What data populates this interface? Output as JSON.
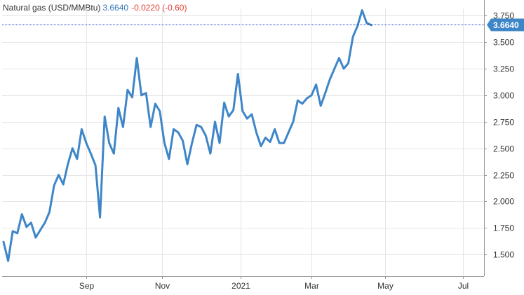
{
  "header": {
    "title": "Natural gas (USD/MMBtu)",
    "last": "3.6640",
    "change": "-0.0220 (-0.60)"
  },
  "colors": {
    "line": "#3f86c8",
    "badge": "#3f86c8",
    "current_line": "#1f3fbf",
    "grid": "#e6e6e6",
    "negative": "#e0413a"
  },
  "chart_data": {
    "type": "line",
    "title": "Natural gas (USD/MMBtu)",
    "xlabel": "",
    "ylabel": "",
    "ylim": [
      1.35,
      3.85
    ],
    "xlim": [
      0,
      103
    ],
    "grid": true,
    "y_axis_side": "right",
    "current_value": 3.664,
    "current_label": "3.6640",
    "y_ticks": [
      1.5,
      1.75,
      2.0,
      2.25,
      2.5,
      2.75,
      3.0,
      3.25,
      3.5,
      3.75
    ],
    "y_tick_labels": [
      "1.500",
      "1.750",
      "2.000",
      "2.250",
      "2.500",
      "2.750",
      "3.000",
      "3.250",
      "3.500",
      "3.750"
    ],
    "x_ticks": [
      18,
      34.5,
      51.5,
      67,
      83,
      100
    ],
    "x_tick_labels": [
      "Sep",
      "Nov",
      "2021",
      "Mar",
      "May",
      "Jul"
    ],
    "x_unit": "week index",
    "series": [
      {
        "name": "",
        "x": [
          0,
          1,
          2,
          3,
          4,
          5,
          6,
          7,
          8,
          9,
          10,
          11,
          12,
          13,
          14,
          15,
          16,
          17,
          18,
          19,
          20,
          21,
          22,
          23,
          24,
          25,
          26,
          27,
          28,
          29,
          30,
          31,
          32,
          33,
          34,
          35,
          36,
          37,
          38,
          39,
          40,
          41,
          42,
          43,
          44,
          45,
          46,
          47,
          48,
          49,
          50,
          51,
          52,
          53,
          54,
          55,
          56,
          57,
          58,
          59,
          60,
          61,
          62,
          63,
          64,
          65,
          66,
          67,
          68,
          69,
          70,
          71,
          72,
          73,
          74,
          75,
          76,
          77,
          78,
          79,
          80,
          81,
          82,
          83,
          84,
          85,
          86,
          87,
          88,
          89,
          90,
          91,
          92,
          93,
          94,
          95,
          96,
          97,
          98,
          99,
          100,
          101,
          102
        ],
        "y": [
          1.62,
          1.44,
          1.72,
          1.7,
          1.88,
          1.76,
          1.8,
          1.66,
          1.73,
          1.8,
          1.9,
          2.15,
          2.25,
          2.16,
          2.35,
          2.5,
          2.4,
          2.68,
          2.55,
          2.45,
          2.34,
          1.85,
          2.8,
          2.55,
          2.45,
          2.88,
          2.7,
          3.05,
          2.98,
          3.35,
          3.0,
          3.02,
          2.7,
          2.92,
          2.85,
          2.55,
          2.4,
          2.68,
          2.65,
          2.57,
          2.35,
          2.55,
          2.72,
          2.7,
          2.62,
          2.45,
          2.75,
          2.55,
          2.93,
          2.8,
          2.86,
          3.2,
          2.85,
          2.78,
          2.82,
          2.65,
          2.52,
          2.6,
          2.56,
          2.68,
          2.55,
          2.55,
          2.65,
          2.75,
          2.95,
          2.92,
          2.97,
          3.0,
          3.1,
          2.9,
          3.02,
          3.15,
          3.25,
          3.35,
          3.25,
          3.3,
          3.55,
          3.65,
          3.8,
          3.68,
          3.66,
          3.664,
          3.664,
          3.664,
          3.664,
          3.664,
          3.664,
          3.664,
          3.664,
          3.664,
          3.664,
          3.664,
          3.664,
          3.664,
          3.664,
          3.664,
          3.664,
          3.664,
          3.664,
          3.664,
          3.664,
          3.664,
          3.664
        ]
      }
    ]
  }
}
